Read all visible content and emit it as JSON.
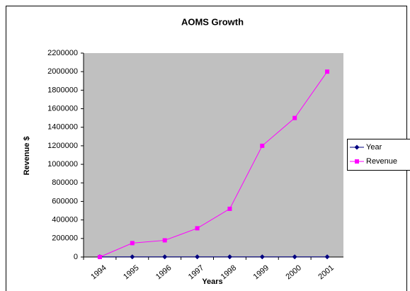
{
  "chart_data": {
    "type": "line",
    "title": "AOMS Growth",
    "x_label": "Years",
    "y_label": "Revenue $",
    "categories": [
      "1994",
      "1995",
      "1996",
      "1997",
      "1998",
      "1999",
      "2000",
      "2001"
    ],
    "series": [
      {
        "name": "Year",
        "color": "#000080",
        "marker": "diamond",
        "values": [
          1994,
          1995,
          1996,
          1997,
          1998,
          1999,
          2000,
          2001
        ]
      },
      {
        "name": "Revenue",
        "color": "#ff00ff",
        "marker": "square",
        "values": [
          0,
          150000,
          180000,
          310000,
          520000,
          1200000,
          1500000,
          2000000
        ]
      }
    ],
    "ylim": [
      0,
      2200000
    ],
    "yticks": [
      0,
      200000,
      400000,
      600000,
      800000,
      1000000,
      1200000,
      1400000,
      1600000,
      1800000,
      2000000,
      2200000
    ],
    "grid": false,
    "plot_background": "#c0c0c0",
    "legend": "right"
  }
}
